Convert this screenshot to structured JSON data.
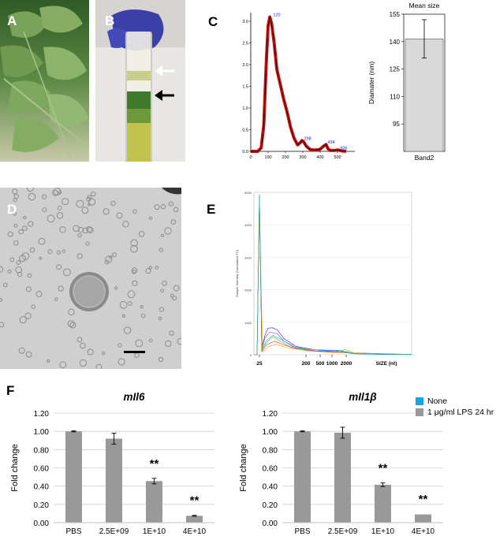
{
  "panels": {
    "A": {
      "letter": "A"
    },
    "B": {
      "letter": "B"
    },
    "C": {
      "letter": "C"
    },
    "D": {
      "letter": "D"
    },
    "E": {
      "letter": "E"
    },
    "F": {
      "letter": "F"
    }
  },
  "chart_data": [
    {
      "id": "C-nta-profile",
      "type": "line",
      "title": "",
      "xlabel": "",
      "ylabel": "",
      "xlim": [
        0,
        600
      ],
      "ylim": [
        0,
        3.2
      ],
      "x_ticks": [
        "0",
        "100",
        "200",
        "300",
        "400",
        "500"
      ],
      "y_ticks": [
        "0.0",
        "0.5",
        "1.0",
        "1.5",
        "2.0",
        "2.5",
        "3.0"
      ],
      "series": [
        {
          "x": [
            0,
            40,
            60,
            75,
            90,
            100,
            110,
            120,
            135,
            150,
            170,
            190,
            210,
            230,
            250,
            270,
            285,
            295,
            305,
            320,
            340,
            360,
            380,
            400,
            420,
            434,
            445,
            460,
            480,
            500,
            506,
            520,
            550
          ],
          "values": [
            0,
            0,
            0.08,
            0.6,
            2.1,
            2.9,
            3.1,
            2.95,
            2.5,
            1.9,
            1.55,
            1.2,
            0.9,
            0.55,
            0.3,
            0.15,
            0.2,
            0.25,
            0.22,
            0.12,
            0.05,
            0.03,
            0.03,
            0.05,
            0.12,
            0.16,
            0.06,
            0.02,
            0.02,
            0.03,
            0.03,
            0.01,
            0
          ]
        }
      ],
      "peak_labels": [
        "120",
        "298",
        "434",
        "506"
      ],
      "grid": false
    },
    {
      "id": "C-mean-size",
      "type": "bar",
      "title": "Mean size",
      "ylabel": "Diamater (nm)",
      "categories": [
        "Band2"
      ],
      "values": [
        141.5
      ],
      "error": [
        10.5
      ],
      "ylim": [
        80,
        155
      ],
      "y_ticks": [
        "95",
        "110",
        "125",
        "140",
        "155"
      ],
      "bar_color": "#d9d9d9"
    },
    {
      "id": "E-bioanalyzer",
      "type": "line",
      "xlabel": "SIZE (nt)",
      "ylabel": "Sample Intensity (Normalized FU)",
      "x_ticks": [
        "25",
        "200",
        "500",
        "1000",
        "2000"
      ],
      "y_ticks": [
        "0",
        "1000",
        "2000",
        "3000",
        "4000",
        "5000"
      ],
      "ylim": [
        0,
        5000
      ],
      "series_colors": [
        "#1a1aff",
        "#9933cc",
        "#33bb33",
        "#ff3333",
        "#ff9900",
        "#00bbbb"
      ]
    },
    {
      "id": "F-mIl6",
      "type": "bar",
      "title": "mIl6",
      "ylabel": "Fold change",
      "categories": [
        "PBS",
        "2.5E+09",
        "1E+10",
        "4E+10"
      ],
      "values": [
        1.0,
        0.92,
        0.455,
        0.075
      ],
      "error": [
        0.005,
        0.06,
        0.03,
        0.005
      ],
      "significance": [
        "",
        "",
        "**",
        "**"
      ],
      "ylim": [
        0,
        1.2
      ],
      "y_ticks": [
        "0.00",
        "0.20",
        "0.40",
        "0.60",
        "0.80",
        "1.00",
        "1.20"
      ],
      "grid": true,
      "bar_color": "#999999"
    },
    {
      "id": "F-mIl1b",
      "type": "bar",
      "title": "mIl1β",
      "ylabel": "Fold change",
      "categories": [
        "PBS",
        "2.5E+09",
        "1E+10",
        "4E+10"
      ],
      "values": [
        1.0,
        0.985,
        0.415,
        0.09
      ],
      "error": [
        0.005,
        0.06,
        0.02,
        0.004
      ],
      "significance": [
        "",
        "",
        "**",
        "**"
      ],
      "ylim": [
        0,
        1.2
      ],
      "y_ticks": [
        "0.00",
        "0.20",
        "0.40",
        "0.60",
        "0.80",
        "1.00",
        "1.20"
      ],
      "grid": true,
      "bar_color": "#999999"
    }
  ],
  "legend_F": [
    {
      "label": "None",
      "color": "#1aa3e8"
    },
    {
      "label": "1 μg/ml LPS 24 hr",
      "color": "#999999"
    }
  ]
}
